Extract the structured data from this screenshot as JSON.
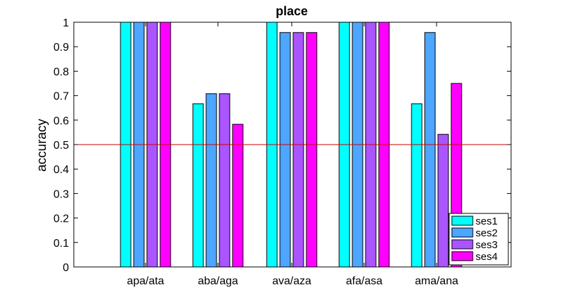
{
  "chart_data": {
    "type": "bar",
    "title": "place",
    "xlabel": "",
    "ylabel": "accuracy",
    "ylim": [
      0,
      1
    ],
    "yticks": [
      "0",
      "0.1",
      "0.2",
      "0.3",
      "0.4",
      "0.5",
      "0.6",
      "0.7",
      "0.8",
      "0.9",
      "1"
    ],
    "categories": [
      "apa/ata",
      "aba/aga",
      "ava/aza",
      "afa/asa",
      "ama/ana"
    ],
    "series": [
      {
        "name": "ses1",
        "color": "#00ffff",
        "values": [
          1.0,
          0.667,
          1.0,
          1.0,
          0.667
        ]
      },
      {
        "name": "ses2",
        "color": "#4da6ff",
        "values": [
          1.0,
          0.708,
          0.958,
          1.0,
          0.958
        ]
      },
      {
        "name": "ses3",
        "color": "#aa55ff",
        "values": [
          1.0,
          0.708,
          0.958,
          1.0,
          0.542
        ]
      },
      {
        "name": "ses4",
        "color": "#ff00ff",
        "values": [
          1.0,
          0.583,
          0.958,
          1.0,
          0.75
        ]
      }
    ],
    "reference_line": {
      "y": 0.5,
      "color": "#cc0000"
    },
    "legend_position": "bottom-right",
    "grid": false
  }
}
